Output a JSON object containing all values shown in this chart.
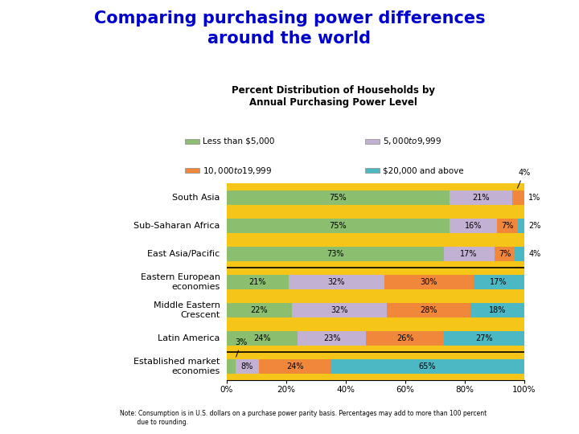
{
  "title": "Comparing purchasing power differences\naround the world",
  "chart_title": "Percent Distribution of Households by\nAnnual Purchasing Power Level",
  "title_color": "#0000CC",
  "orange_line_color": "#E87722",
  "background_outer": "#FFFFFF",
  "background_inner": "#F5C518",
  "categories": [
    "South Asia",
    "Sub-Saharan Africa",
    "East Asia/Pacific",
    "Eastern European\neconomies",
    "Middle Eastern\nCrescent",
    "Latin America",
    "Established market\neconomies"
  ],
  "data": [
    [
      75,
      21,
      4,
      1
    ],
    [
      75,
      16,
      7,
      2
    ],
    [
      73,
      17,
      7,
      4
    ],
    [
      21,
      32,
      30,
      17
    ],
    [
      22,
      32,
      28,
      18
    ],
    [
      24,
      23,
      26,
      27
    ],
    [
      3,
      8,
      24,
      65
    ]
  ],
  "colors": [
    "#8BBE6E",
    "#C3B1D4",
    "#F0873A",
    "#4BB8C4"
  ],
  "legend_labels": [
    "Less than $5,000",
    "$5,000 to $9,999",
    "$10,000 to $19,999",
    "$20,000 and above"
  ],
  "note": "Note: Consumption is in U.S. dollars on a purchase power parity basis. Percentages may add to more than 100 percent\n         due to rounding.",
  "separator_after_idx": [
    2,
    5
  ],
  "outside_labels": {
    "0": {
      "value": "4%",
      "note": "1%"
    },
    "1": {
      "value": "2%"
    },
    "2": {
      "value": "4%"
    },
    "6": {
      "value": "3%"
    }
  }
}
